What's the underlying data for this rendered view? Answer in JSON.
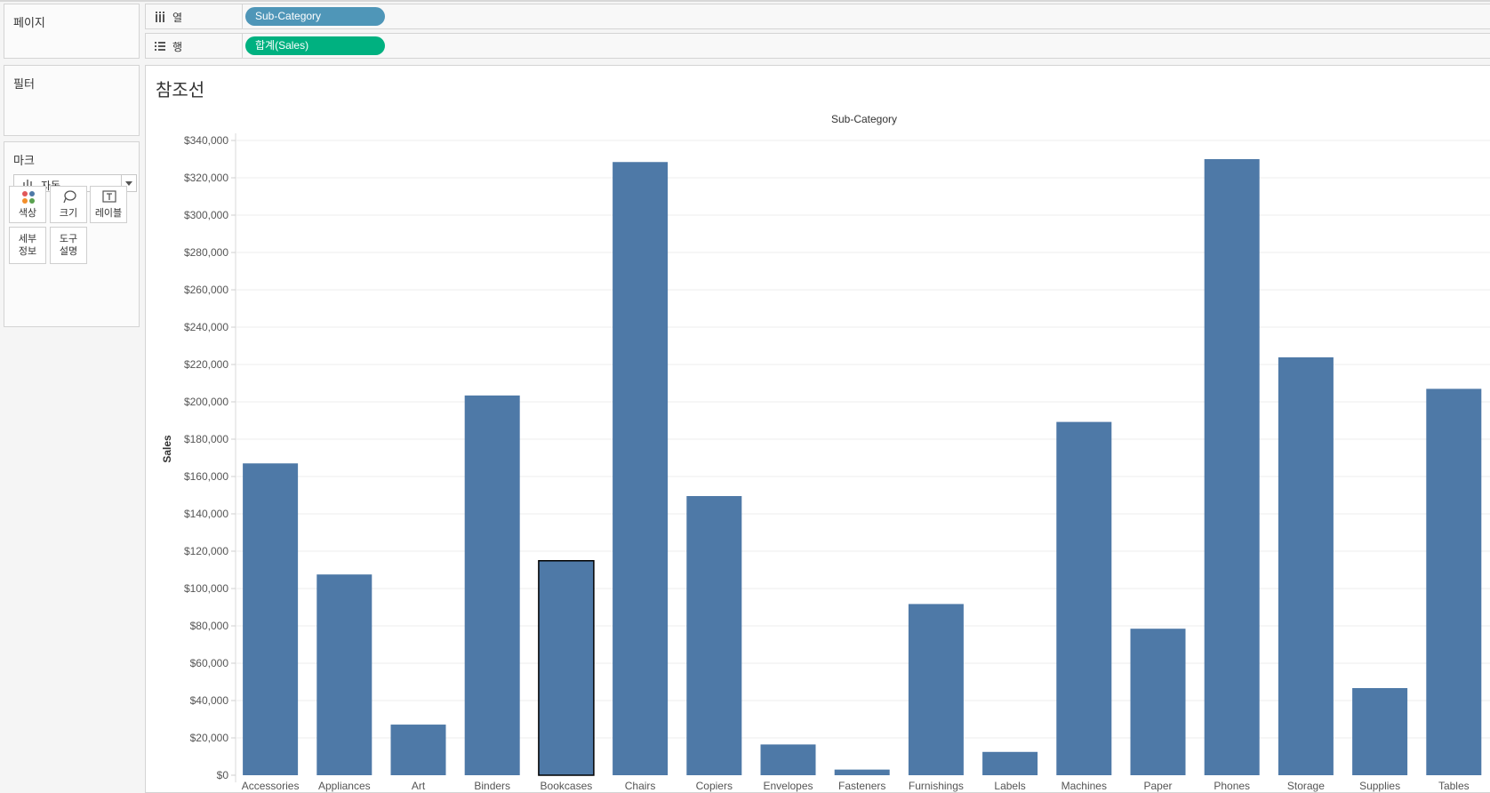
{
  "left_panel": {
    "pages_title": "페이지",
    "filters_title": "필터",
    "marks": {
      "title": "마크",
      "mark_type": "자동",
      "buttons": [
        {
          "label": "색상",
          "icon": "color-dots-icon"
        },
        {
          "label": "크기",
          "icon": "size-lasso-icon"
        },
        {
          "label": "레이블",
          "icon": "text-label-icon"
        },
        {
          "label": "세부\n정보"
        },
        {
          "label": "도구\n설명"
        }
      ]
    }
  },
  "shelves": {
    "columns": {
      "label": "열",
      "pill": "Sub-Category",
      "pill_color": "#4f96b8"
    },
    "rows": {
      "label": "행",
      "pill": "합계(Sales)",
      "pill_color": "#00b180"
    }
  },
  "sheet": {
    "title": "참조선"
  },
  "colors": {
    "bar": "#4e79a7",
    "highlight_border": "#000000"
  },
  "chart_data": {
    "type": "bar",
    "title": "",
    "header": "Sub-Category",
    "xlabel": "Sub-Category",
    "ylabel": "Sales",
    "ylim": [
      0,
      340000
    ],
    "yticks": [
      0,
      20000,
      40000,
      60000,
      80000,
      100000,
      120000,
      140000,
      160000,
      180000,
      200000,
      220000,
      240000,
      260000,
      280000,
      300000,
      320000,
      340000
    ],
    "ytick_labels": [
      "$0",
      "$20,000",
      "$40,000",
      "$60,000",
      "$80,000",
      "$100,000",
      "$120,000",
      "$140,000",
      "$160,000",
      "$180,000",
      "$200,000",
      "$220,000",
      "$240,000",
      "$260,000",
      "$280,000",
      "$300,000",
      "$320,000",
      "$340,000"
    ],
    "grid": true,
    "categories": [
      "Accessories",
      "Appliances",
      "Art",
      "Binders",
      "Bookcases",
      "Chairs",
      "Copiers",
      "Envelopes",
      "Fasteners",
      "Furnishings",
      "Labels",
      "Machines",
      "Paper",
      "Phones",
      "Storage",
      "Supplies",
      "Tables"
    ],
    "values": [
      167026,
      107532,
      27119,
      203413,
      114880,
      328449,
      149528,
      16476,
      3024,
      91705,
      12486,
      189239,
      78479,
      330007,
      223844,
      46674,
      206966
    ],
    "selected": "Bookcases"
  }
}
